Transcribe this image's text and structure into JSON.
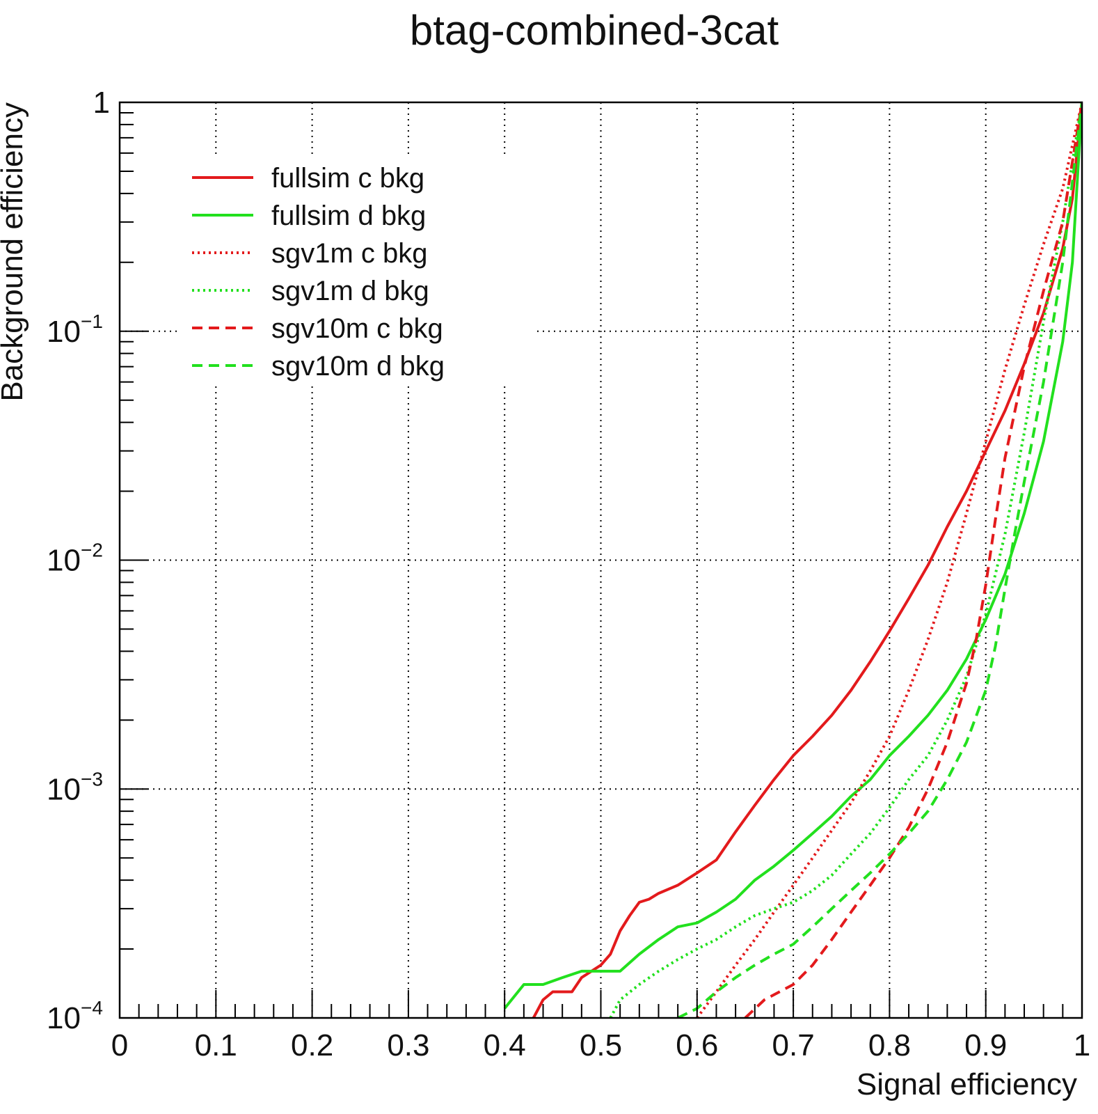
{
  "chart_data": {
    "type": "line",
    "title": "btag-combined-3cat",
    "xlabel": "Signal efficiency",
    "ylabel": "Background efficiency",
    "xlim": [
      0,
      1
    ],
    "ylim": [
      0.0001,
      1
    ],
    "y_scale": "log",
    "grid": true,
    "legend_position": "top-left",
    "x_tick_labels": [
      "0",
      "0.1",
      "0.2",
      "0.3",
      "0.4",
      "0.5",
      "0.6",
      "0.7",
      "0.8",
      "0.9",
      "1"
    ],
    "y_tick_labels": [
      {
        "base": "10",
        "exp": "−4"
      },
      {
        "base": "10",
        "exp": "−3"
      },
      {
        "base": "10",
        "exp": "−2"
      },
      {
        "base": "10",
        "exp": "−1"
      },
      {
        "base": "1",
        "exp": ""
      }
    ],
    "series": [
      {
        "name": "fullsim c bkg",
        "color": "#e31a1c",
        "style": "solid",
        "x": [
          0.43,
          0.44,
          0.45,
          0.47,
          0.48,
          0.5,
          0.51,
          0.52,
          0.53,
          0.54,
          0.55,
          0.56,
          0.58,
          0.6,
          0.62,
          0.64,
          0.66,
          0.68,
          0.7,
          0.72,
          0.74,
          0.76,
          0.78,
          0.8,
          0.82,
          0.84,
          0.86,
          0.88,
          0.9,
          0.92,
          0.94,
          0.96,
          0.98,
          0.99,
          1.0
        ],
        "y": [
          0.0001,
          0.00012,
          0.00013,
          0.00013,
          0.00015,
          0.00017,
          0.00019,
          0.00024,
          0.00028,
          0.00032,
          0.00033,
          0.00035,
          0.00038,
          0.00043,
          0.00049,
          0.00065,
          0.00085,
          0.0011,
          0.0014,
          0.0017,
          0.0021,
          0.0027,
          0.0036,
          0.0049,
          0.0068,
          0.0095,
          0.014,
          0.02,
          0.03,
          0.045,
          0.072,
          0.12,
          0.23,
          0.38,
          1.0
        ]
      },
      {
        "name": "fullsim d bkg",
        "color": "#22e01e",
        "style": "solid",
        "x": [
          0.4,
          0.42,
          0.44,
          0.46,
          0.48,
          0.5,
          0.52,
          0.54,
          0.56,
          0.58,
          0.6,
          0.62,
          0.64,
          0.66,
          0.68,
          0.7,
          0.72,
          0.74,
          0.76,
          0.78,
          0.8,
          0.82,
          0.84,
          0.86,
          0.88,
          0.9,
          0.92,
          0.94,
          0.96,
          0.98,
          0.99,
          1.0
        ],
        "y": [
          0.00011,
          0.00014,
          0.00014,
          0.00015,
          0.00016,
          0.00016,
          0.00016,
          0.00019,
          0.00022,
          0.00025,
          0.00026,
          0.00029,
          0.00033,
          0.0004,
          0.00046,
          0.00054,
          0.00064,
          0.00076,
          0.00093,
          0.0011,
          0.0014,
          0.0017,
          0.0021,
          0.0027,
          0.0037,
          0.0055,
          0.0087,
          0.016,
          0.033,
          0.09,
          0.2,
          1.0
        ]
      },
      {
        "name": "sgv1m c bkg",
        "color": "#e31a1c",
        "style": "dotted",
        "x": [
          0.6,
          0.62,
          0.64,
          0.66,
          0.68,
          0.7,
          0.72,
          0.74,
          0.76,
          0.78,
          0.8,
          0.82,
          0.84,
          0.86,
          0.88,
          0.9,
          0.92,
          0.94,
          0.96,
          0.98,
          1.0
        ],
        "y": [
          0.0001,
          0.00013,
          0.00017,
          0.00022,
          0.00029,
          0.00038,
          0.0005,
          0.00066,
          0.00087,
          0.0012,
          0.0017,
          0.0027,
          0.0045,
          0.008,
          0.016,
          0.033,
          0.068,
          0.13,
          0.24,
          0.42,
          1.0
        ]
      },
      {
        "name": "sgv1m d bkg",
        "color": "#22e01e",
        "style": "dotted",
        "x": [
          0.51,
          0.52,
          0.54,
          0.56,
          0.58,
          0.6,
          0.62,
          0.64,
          0.66,
          0.68,
          0.7,
          0.72,
          0.74,
          0.76,
          0.78,
          0.8,
          0.82,
          0.84,
          0.86,
          0.88,
          0.9,
          0.92,
          0.94,
          0.96,
          0.98,
          1.0
        ],
        "y": [
          0.0001,
          0.00012,
          0.00014,
          0.00016,
          0.00018,
          0.0002,
          0.00022,
          0.00025,
          0.00028,
          0.0003,
          0.00032,
          0.00036,
          0.00042,
          0.00052,
          0.00064,
          0.00083,
          0.0011,
          0.0014,
          0.002,
          0.0031,
          0.0058,
          0.013,
          0.036,
          0.11,
          0.3,
          1.0
        ]
      },
      {
        "name": "sgv10m c bkg",
        "color": "#e31a1c",
        "style": "dashed",
        "x": [
          0.65,
          0.67,
          0.7,
          0.72,
          0.74,
          0.76,
          0.78,
          0.8,
          0.82,
          0.84,
          0.86,
          0.88,
          0.89,
          0.9,
          0.91,
          0.92,
          0.94,
          0.96,
          0.98,
          1.0
        ],
        "y": [
          0.0001,
          0.00012,
          0.00014,
          0.00017,
          0.00022,
          0.00029,
          0.00038,
          0.0005,
          0.00068,
          0.001,
          0.0016,
          0.0029,
          0.0045,
          0.0078,
          0.015,
          0.028,
          0.07,
          0.15,
          0.3,
          1.0
        ]
      },
      {
        "name": "sgv10m d bkg",
        "color": "#22e01e",
        "style": "dashed",
        "x": [
          0.58,
          0.6,
          0.62,
          0.64,
          0.66,
          0.68,
          0.7,
          0.72,
          0.74,
          0.76,
          0.78,
          0.8,
          0.82,
          0.84,
          0.86,
          0.88,
          0.9,
          0.91,
          0.92,
          0.93,
          0.94,
          0.96,
          0.98,
          1.0
        ],
        "y": [
          0.0001,
          0.00011,
          0.00013,
          0.00015,
          0.00017,
          0.00019,
          0.00021,
          0.00025,
          0.0003,
          0.00036,
          0.00043,
          0.00052,
          0.00064,
          0.0008,
          0.0011,
          0.0016,
          0.0027,
          0.0042,
          0.0075,
          0.013,
          0.022,
          0.06,
          0.2,
          1.0
        ]
      }
    ]
  }
}
